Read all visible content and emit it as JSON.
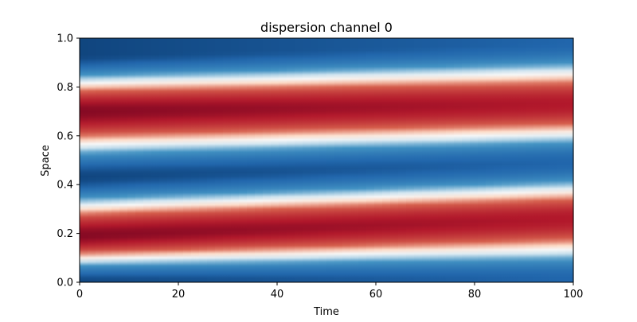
{
  "chart_data": {
    "type": "heatmap",
    "title": "dispersion channel 0",
    "xlabel": "Time",
    "ylabel": "Space",
    "xlim": [
      0,
      100
    ],
    "ylim": [
      0,
      1
    ],
    "x_ticks": [
      "0",
      "20",
      "40",
      "60",
      "80",
      "100"
    ],
    "y_ticks": [
      "0.0",
      "0.2",
      "0.4",
      "0.6",
      "0.8",
      "1.0"
    ],
    "colormap": "RdBu_r",
    "grid": false,
    "legend": "none",
    "bands": [
      {
        "kind": "low",
        "center_at_t0": 0.0,
        "center_at_t100": 0.01
      },
      {
        "kind": "high",
        "center_at_t0": 0.19,
        "center_at_t100": 0.26
      },
      {
        "kind": "low",
        "center_at_t0": 0.43,
        "center_at_t100": 0.49
      },
      {
        "kind": "high",
        "center_at_t0": 0.7,
        "center_at_t100": 0.73
      },
      {
        "kind": "low",
        "center_at_t0": 0.93,
        "center_at_t100": 0.98
      }
    ],
    "colors": {
      "high": "#a51c2c",
      "low": "#0b3c6e",
      "mid": "#f7f7f7"
    }
  }
}
